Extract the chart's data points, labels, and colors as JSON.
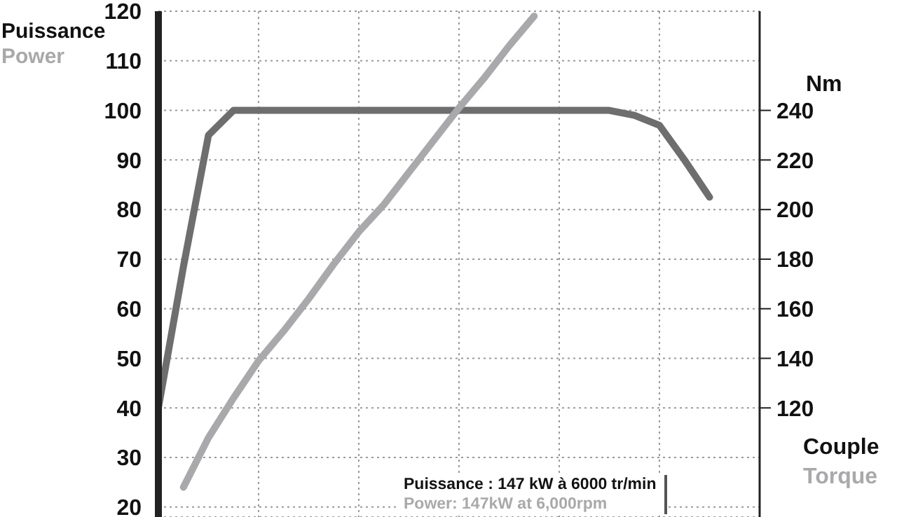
{
  "chart_data": {
    "type": "line",
    "ylabel": "Puissance\nPower",
    "y2label": "Nm",
    "categories": [
      null,
      null,
      null,
      null,
      null,
      null,
      null,
      null,
      null,
      null,
      null,
      null,
      null,
      null,
      null,
      null,
      null,
      null,
      null,
      null,
      null,
      null,
      null,
      null,
      null
    ],
    "ylim": [
      18,
      120
    ],
    "yticks": [
      20,
      30,
      40,
      50,
      60,
      70,
      80,
      90,
      100,
      110,
      120
    ],
    "y2lim": [
      76,
      280
    ],
    "y2ticks": [
      120,
      140,
      160,
      180,
      200,
      220,
      240
    ],
    "tick_labels": "y",
    "grid": true,
    "marker": "none",
    "line_style": "solid",
    "series": [
      {
        "color": "#6e6e6e",
        "axis": "y2",
        "values": [
          120,
          177,
          230,
          240,
          240,
          240,
          240,
          240,
          240,
          240,
          240,
          240,
          240,
          240,
          240,
          240,
          240,
          240,
          240,
          238,
          234,
          220,
          205,
          null,
          null
        ]
      },
      {
        "color": "#a9a9ab",
        "values": [
          null,
          24,
          34,
          42,
          49.5,
          55.5,
          62,
          69,
          75.5,
          81,
          87.5,
          94,
          100.5,
          106.5,
          113,
          119,
          null,
          null,
          null,
          null,
          null,
          null,
          null,
          null,
          null
        ]
      }
    ],
    "annotations": [
      "Couple\nTorque",
      "Puissance : 147 kW à 6000 tr/min\nPower: 147kW at 6,000rpm"
    ]
  }
}
